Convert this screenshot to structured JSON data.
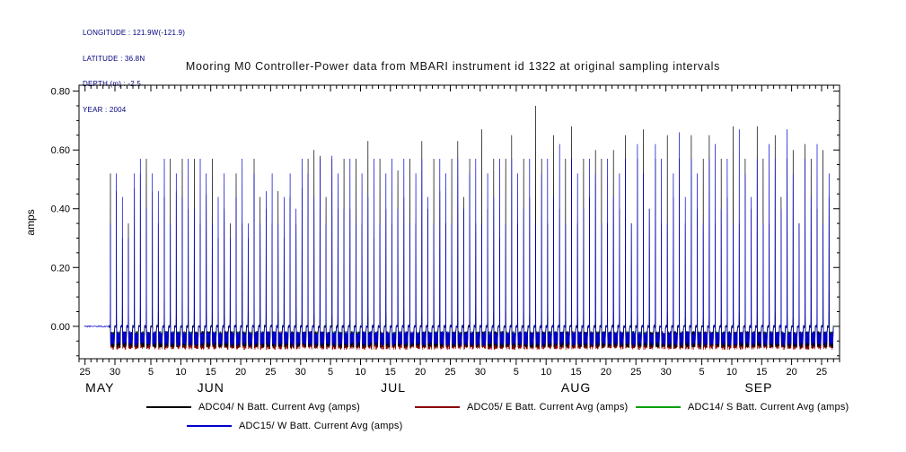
{
  "header": {
    "longitude": "LONGITUDE : 121.9W(-121.9)",
    "latitude": "LATITUDE : 36.8N",
    "depth": "DEPTH (m) : -2.5",
    "year": "YEAR : 2004"
  },
  "chart_data": {
    "type": "line",
    "title": "Mooring M0 Controller-Power data from MBARI instrument id 1322 at original sampling intervals",
    "xlabel": "",
    "ylabel": "amps",
    "ylim": [
      -0.11,
      0.82
    ],
    "yticks": [
      0.0,
      0.2,
      0.4,
      0.6,
      0.8
    ],
    "ytick_labels": [
      "0.00",
      "0.20",
      "0.40",
      "0.60",
      "0.80"
    ],
    "x_unit": "day",
    "day_zero": "24 MAY 2004",
    "x_days_total": 127,
    "x_major_ticks": [
      {
        "day": 1,
        "label": "25"
      },
      {
        "day": 6,
        "label": "30"
      },
      {
        "day": 12,
        "label": "5"
      },
      {
        "day": 17,
        "label": "10"
      },
      {
        "day": 22,
        "label": "15"
      },
      {
        "day": 27,
        "label": "20"
      },
      {
        "day": 32,
        "label": "25"
      },
      {
        "day": 37,
        "label": "30"
      },
      {
        "day": 42,
        "label": "5"
      },
      {
        "day": 47,
        "label": "10"
      },
      {
        "day": 52,
        "label": "15"
      },
      {
        "day": 57,
        "label": "20"
      },
      {
        "day": 62,
        "label": "25"
      },
      {
        "day": 67,
        "label": "30"
      },
      {
        "day": 73,
        "label": "5"
      },
      {
        "day": 78,
        "label": "10"
      },
      {
        "day": 83,
        "label": "15"
      },
      {
        "day": 88,
        "label": "20"
      },
      {
        "day": 93,
        "label": "25"
      },
      {
        "day": 98,
        "label": "30"
      },
      {
        "day": 104,
        "label": "5"
      },
      {
        "day": 109,
        "label": "10"
      },
      {
        "day": 114,
        "label": "15"
      },
      {
        "day": 119,
        "label": "20"
      },
      {
        "day": 124,
        "label": "25"
      }
    ],
    "month_labels": [
      {
        "label": "MAY",
        "center_day": 3.5
      },
      {
        "label": "JUN",
        "center_day": 22
      },
      {
        "label": "JUL",
        "center_day": 52.5
      },
      {
        "label": "AUG",
        "center_day": 83
      },
      {
        "label": "SEP",
        "center_day": 113.5
      }
    ],
    "series": [
      {
        "name": "ADC04/ N Batt. Current Avg (amps)",
        "color": "#000000",
        "first_day": 5,
        "daily_min": -0.067,
        "peaks": [
          0.52,
          0.46,
          0.3,
          0.35,
          0.47,
          0.52,
          0.57,
          0.46,
          0.35,
          0.44,
          0.57,
          0.46,
          0.57,
          0.4,
          0.57,
          0.35,
          0.45,
          0.57,
          0.3,
          0.4,
          0.35,
          0.52,
          0.35,
          0.3,
          0.57,
          0.44,
          0.4,
          0.35,
          0.46,
          0.3,
          0.44,
          0.35,
          0.47,
          0.57,
          0.6,
          0.58,
          0.44,
          0.57,
          0.4,
          0.57,
          0.4,
          0.57,
          0.35,
          0.63,
          0.3,
          0.57,
          0.4,
          0.35,
          0.53,
          0.44,
          0.57,
          0.35,
          0.63,
          0.4,
          0.57,
          0.46,
          0.35,
          0.57,
          0.63,
          0.44,
          0.57,
          0.35,
          0.67,
          0.4,
          0.57,
          0.3,
          0.57,
          0.65,
          0.35,
          0.57,
          0.44,
          0.75,
          0.57,
          0.35,
          0.65,
          0.4,
          0.57,
          0.68,
          0.35,
          0.57,
          0.44,
          0.6,
          0.57,
          0.35,
          0.6,
          0.4,
          0.65,
          0.35,
          0.57,
          0.67,
          0.4,
          0.57,
          0.35,
          0.65,
          0.44,
          0.57,
          0.35,
          0.65,
          0.4,
          0.57,
          0.65,
          0.35,
          0.57,
          0.44,
          0.68,
          0.35,
          0.57,
          0.4,
          0.68,
          0.57,
          0.35,
          0.65,
          0.44,
          0.57,
          0.6,
          0.35,
          0.62,
          0.57,
          0.4,
          0.6,
          0.44
        ]
      },
      {
        "name": "ADC05/ E Batt. Current Avg (amps)",
        "color": "#8b0000",
        "first_day": 5,
        "daily_min": -0.074,
        "peaks": [
          0.13,
          0.04,
          0.03,
          0.05,
          0.02,
          0.06,
          0.03,
          0.04,
          0.05,
          0.02,
          0.04,
          0.03,
          0.05,
          0.02,
          0.06,
          0.03,
          0.04,
          0.05,
          0.02,
          0.04,
          0.03,
          0.05,
          0.02,
          0.06,
          0.03,
          0.04,
          0.05,
          0.02,
          0.04,
          0.03,
          0.05,
          0.02,
          0.06,
          0.03,
          0.04,
          0.05,
          0.02,
          0.04,
          0.03,
          0.05,
          0.02,
          0.06,
          0.03,
          0.04,
          0.05,
          0.02,
          0.04,
          0.03,
          0.05,
          0.02,
          0.06,
          0.03,
          0.04,
          0.05,
          0.02,
          0.04,
          0.03,
          0.05,
          0.02,
          0.06,
          0.03,
          0.04,
          0.05,
          0.02,
          0.04,
          0.03,
          0.05,
          0.02,
          0.06,
          0.03,
          0.04,
          0.05,
          0.02,
          0.04,
          0.03,
          0.05,
          0.02,
          0.06,
          0.03,
          0.04,
          0.05,
          0.02,
          0.04,
          0.03,
          0.05,
          0.02,
          0.06,
          0.03,
          0.04,
          0.05,
          0.02,
          0.04,
          0.03,
          0.05,
          0.02,
          0.06,
          0.03,
          0.04,
          0.05,
          0.02,
          0.04,
          0.03,
          0.05,
          0.02,
          0.06,
          0.03,
          0.04,
          0.05,
          0.02,
          0.04,
          0.03,
          0.05,
          0.02,
          0.06,
          0.03,
          0.04,
          0.05,
          0.02,
          0.04,
          0.03,
          0.05
        ]
      },
      {
        "name": "ADC14/ S Batt. Current Avg (amps)",
        "color": "#00a000",
        "first_day": 5,
        "daily_min": -0.052,
        "peaks": [
          0.05,
          0.03,
          0.06,
          0.04,
          0.02,
          0.05,
          0.03,
          0.06,
          0.04,
          0.03,
          0.05,
          0.04,
          0.02,
          0.06,
          0.03,
          0.05,
          0.04,
          0.02,
          0.05,
          0.03,
          0.06,
          0.04,
          0.02,
          0.05,
          0.03,
          0.06,
          0.04,
          0.03,
          0.05,
          0.04,
          0.02,
          0.06,
          0.03,
          0.05,
          0.04,
          0.02,
          0.05,
          0.03,
          0.06,
          0.04,
          0.02,
          0.05,
          0.03,
          0.06,
          0.04,
          0.03,
          0.05,
          0.04,
          0.02,
          0.06,
          0.03,
          0.05,
          0.04,
          0.02,
          0.05,
          0.03,
          0.06,
          0.04,
          0.02,
          0.05,
          0.03,
          0.06,
          0.04,
          0.03,
          0.05,
          0.04,
          0.02,
          0.06,
          0.03,
          0.05,
          0.04,
          0.02,
          0.05,
          0.03,
          0.06,
          0.04,
          0.02,
          0.05,
          0.03,
          0.06,
          0.04,
          0.03,
          0.05,
          0.04,
          0.02,
          0.06,
          0.03,
          0.05,
          0.04,
          0.02,
          0.05,
          0.03,
          0.06,
          0.04,
          0.02,
          0.05,
          0.03,
          0.06,
          0.04,
          0.03,
          0.05,
          0.04,
          0.02,
          0.06,
          0.03,
          0.05,
          0.04,
          0.02,
          0.05,
          0.03,
          0.06,
          0.04,
          0.02,
          0.05,
          0.03,
          0.06,
          0.04,
          0.03,
          0.05,
          0.1,
          0.12
        ]
      },
      {
        "name": "ADC15/ W Batt. Current Avg (amps)",
        "color": "#0000cc",
        "first_day": 5,
        "daily_min": -0.06,
        "lead_flat": [
          0.9,
          5.0
        ],
        "peaks": [
          0.35,
          0.52,
          0.44,
          0.3,
          0.52,
          0.57,
          0.4,
          0.52,
          0.46,
          0.57,
          0.35,
          0.52,
          0.44,
          0.57,
          0.4,
          0.57,
          0.52,
          0.35,
          0.44,
          0.52,
          0.3,
          0.44,
          0.57,
          0.35,
          0.52,
          0.35,
          0.46,
          0.52,
          0.35,
          0.44,
          0.52,
          0.4,
          0.57,
          0.52,
          0.44,
          0.57,
          0.35,
          0.58,
          0.52,
          0.4,
          0.57,
          0.35,
          0.52,
          0.44,
          0.57,
          0.35,
          0.52,
          0.57,
          0.4,
          0.57,
          0.35,
          0.52,
          0.57,
          0.44,
          0.35,
          0.57,
          0.52,
          0.35,
          0.57,
          0.4,
          0.52,
          0.57,
          0.35,
          0.52,
          0.44,
          0.57,
          0.35,
          0.57,
          0.52,
          0.4,
          0.57,
          0.35,
          0.52,
          0.57,
          0.44,
          0.62,
          0.35,
          0.57,
          0.52,
          0.4,
          0.57,
          0.52,
          0.35,
          0.57,
          0.44,
          0.52,
          0.57,
          0.35,
          0.62,
          0.52,
          0.4,
          0.62,
          0.57,
          0.35,
          0.52,
          0.66,
          0.44,
          0.57,
          0.52,
          0.35,
          0.57,
          0.62,
          0.4,
          0.57,
          0.35,
          0.67,
          0.52,
          0.44,
          0.57,
          0.35,
          0.62,
          0.57,
          0.4,
          0.67,
          0.52,
          0.35,
          0.57,
          0.44,
          0.62,
          0.35,
          0.52
        ]
      }
    ]
  }
}
